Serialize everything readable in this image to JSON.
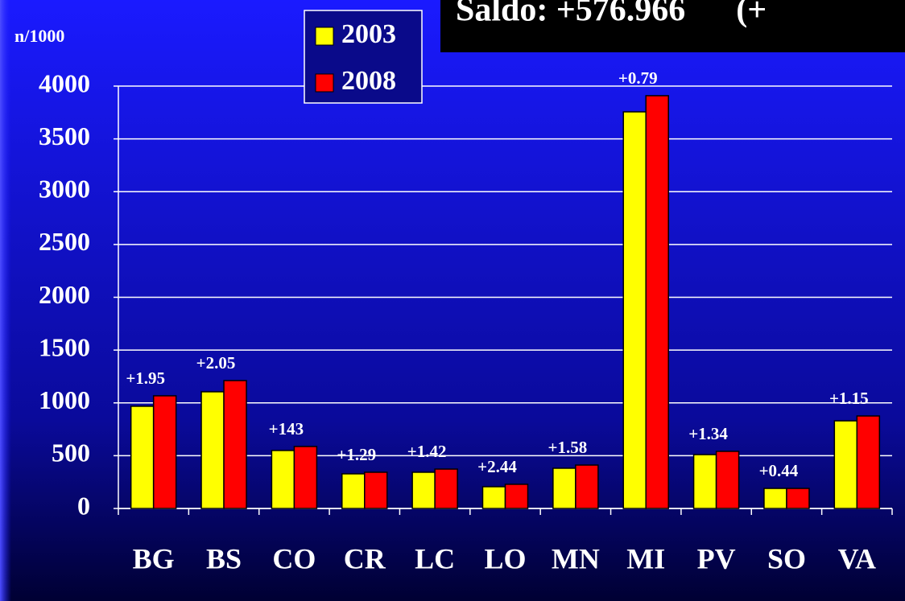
{
  "chart_data": {
    "type": "bar",
    "title": "Saldo: +576.966      (+",
    "y_label": "n/1000",
    "categories": [
      "BG",
      "BS",
      "CO",
      "CR",
      "LC",
      "LO",
      "MN",
      "MI",
      "PV",
      "SO",
      "VA"
    ],
    "series": [
      {
        "name": "2003",
        "color": "#ffff00",
        "values": [
          968,
          1105,
          549,
          328,
          343,
          206,
          381,
          3756,
          510,
          190,
          830
        ]
      },
      {
        "name": "2008",
        "color": "#ff0000",
        "values": [
          1067,
          1211,
          587,
          343,
          373,
          229,
          411,
          3909,
          541,
          190,
          876
        ]
      }
    ],
    "annotations": [
      "+1.95",
      "+2.05",
      "+143",
      "+1.29",
      "+1.42",
      "+2.44",
      "+1.58",
      "+0.79",
      "+1.34",
      "+0.44",
      "+1.15"
    ],
    "ylim": [
      0,
      4000
    ],
    "yticks": [
      0,
      500,
      1000,
      1500,
      2000,
      2500,
      3000,
      3500,
      4000
    ],
    "grid": true
  }
}
